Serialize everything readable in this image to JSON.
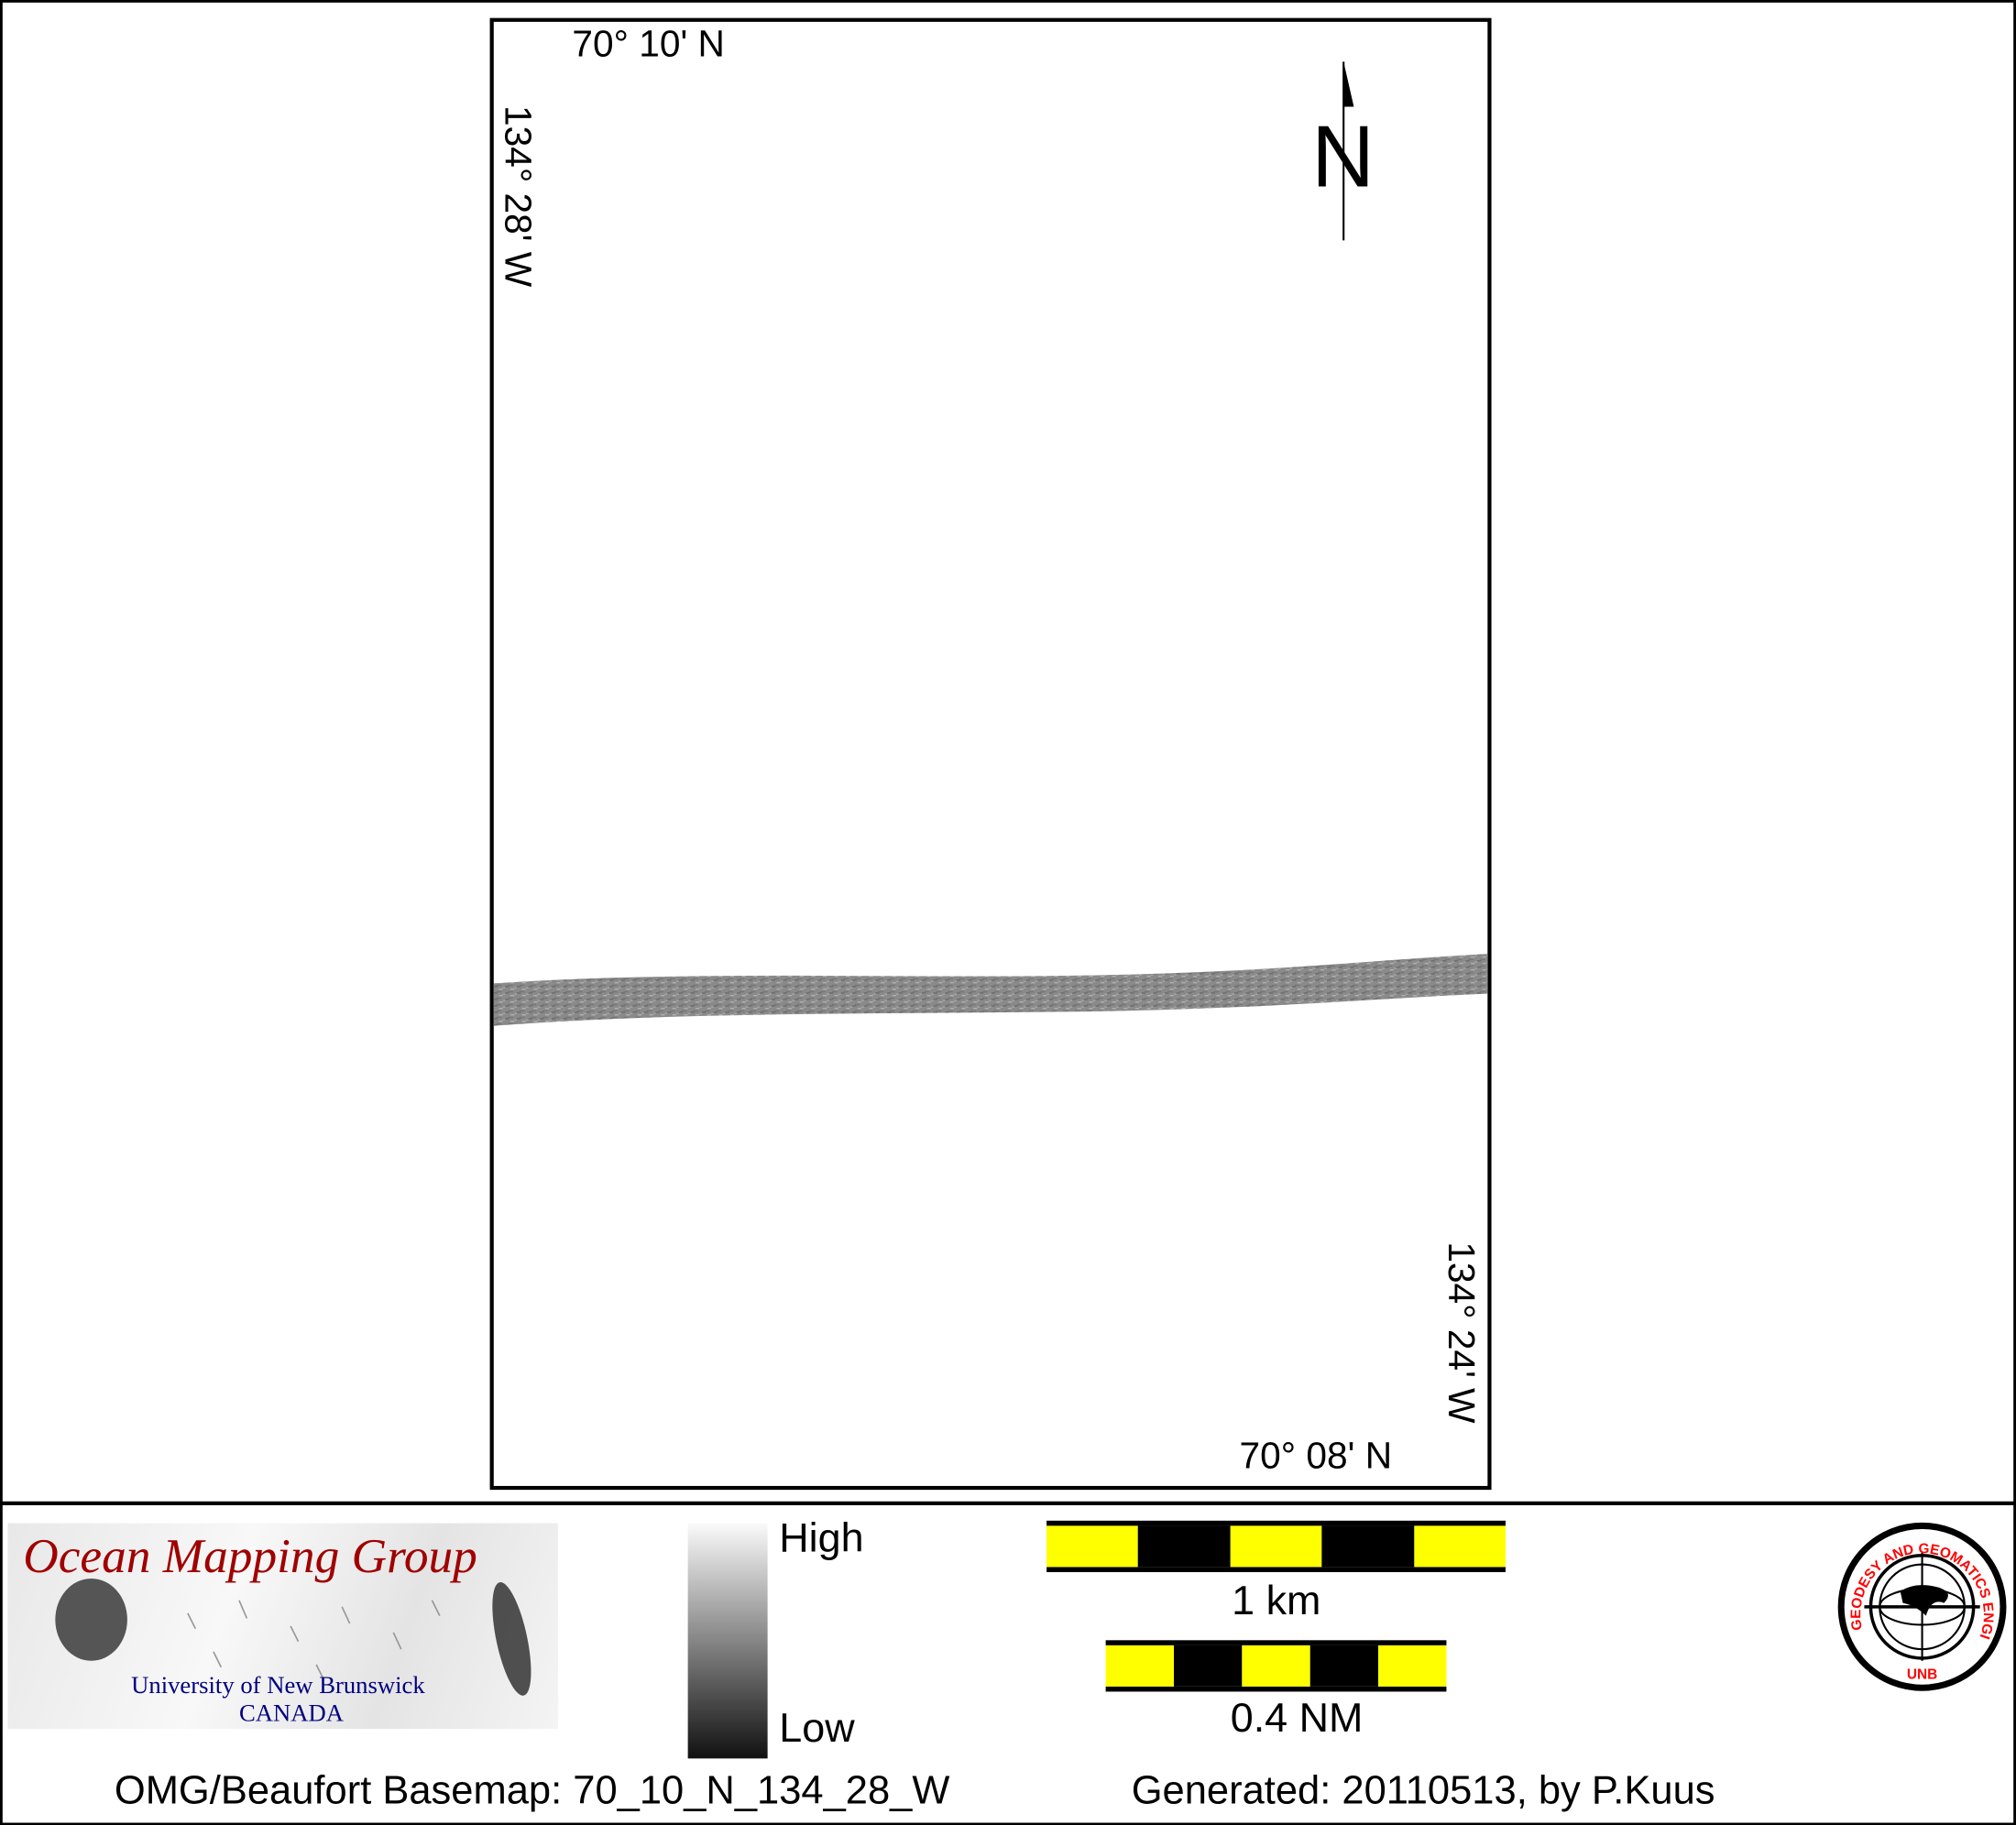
{
  "map": {
    "top_left_lat": "70° 10' N",
    "left_lon": "134° 28' W",
    "bottom_right_lat": "70° 08' N",
    "right_lon": "134° 24' W",
    "north_arrow": "N"
  },
  "legend": {
    "high_label": "High",
    "low_label": "Low",
    "scale_km": "1 km",
    "scale_nm": "0.4 NM",
    "scalebar_colors": [
      "#ffff00",
      "#000000"
    ]
  },
  "logos": {
    "omg_title": "Ocean Mapping Group",
    "omg_university": "University of New Brunswick",
    "omg_country": "CANADA",
    "seal_text": "GEODESY AND GEOMATICS ENGINEERING",
    "seal_bottom": "UNB",
    "omg_title_color": "#a00000",
    "omg_sub_color": "#000080",
    "seal_color": "#ff0000"
  },
  "footer": {
    "basemap": "OMG/Beaufort Basemap: 70_10_N_134_28_W",
    "generated": "Generated: 20110513, by P.Kuus"
  }
}
